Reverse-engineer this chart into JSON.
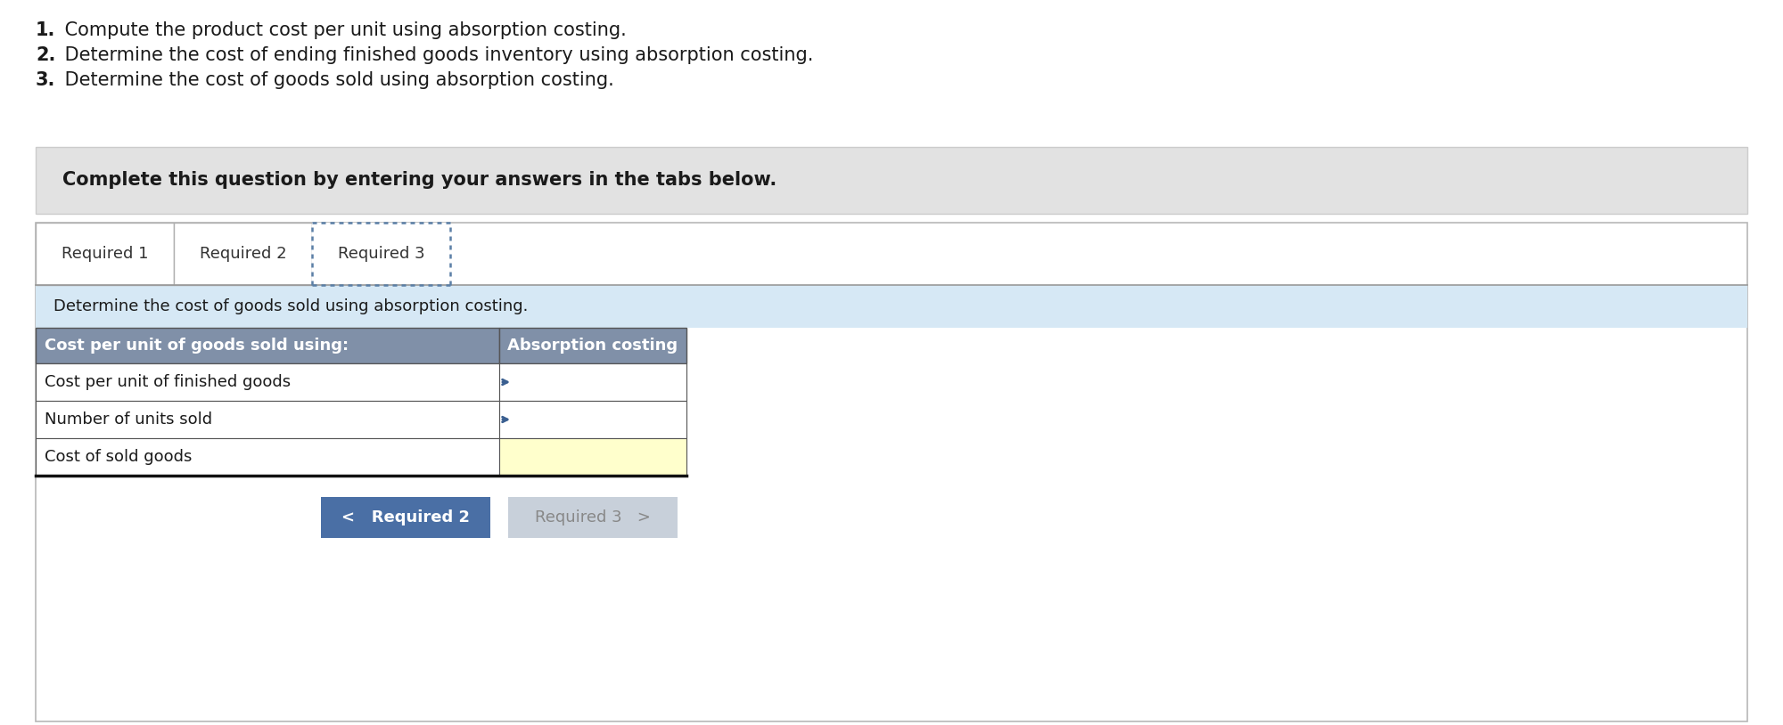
{
  "bg_color": "#ffffff",
  "instructions": [
    {
      "num": "1.",
      "text": " Compute the product cost per unit using absorption costing."
    },
    {
      "num": "2.",
      "text": " Determine the cost of ending finished goods inventory using absorption costing."
    },
    {
      "num": "3.",
      "text": " Determine the cost of goods sold using absorption costing."
    }
  ],
  "banner_bg": "#e2e2e2",
  "banner_text": "Complete this question by entering your answers in the tabs below.",
  "tab_labels": [
    "Required 1",
    "Required 2",
    "Required 3"
  ],
  "tab_active": 2,
  "tab_active_border_color": "#5b7fa6",
  "section_bg": "#d6e8f5",
  "section_text": "Determine the cost of goods sold using absorption costing.",
  "table_header_bg": "#8090a8",
  "table_header_text_color": "#ffffff",
  "table_col1_header": "Cost per unit of goods sold using:",
  "table_col2_header": "Absorption costing",
  "table_rows": [
    {
      "label": "Cost per unit of finished goods",
      "bg": "#ffffff",
      "has_arrow": true
    },
    {
      "label": "Number of units sold",
      "bg": "#ffffff",
      "has_arrow": true
    },
    {
      "label": "Cost of sold goods",
      "bg": "#ffffcc",
      "has_arrow": false
    }
  ],
  "btn1_text": "<   Required 2",
  "btn1_bg": "#4a6fa5",
  "btn1_text_color": "#ffffff",
  "btn2_text": "Required 3   >",
  "btn2_bg": "#c8d0da",
  "btn2_text_color": "#888888",
  "outer_border_color": "#b8b8b8",
  "table_border_color": "#555555",
  "tab_border_color": "#b0b0b0",
  "instr_font_size": 15,
  "banner_font_size": 15,
  "tab_font_size": 13,
  "section_font_size": 13,
  "table_font_size": 13,
  "btn_font_size": 13
}
